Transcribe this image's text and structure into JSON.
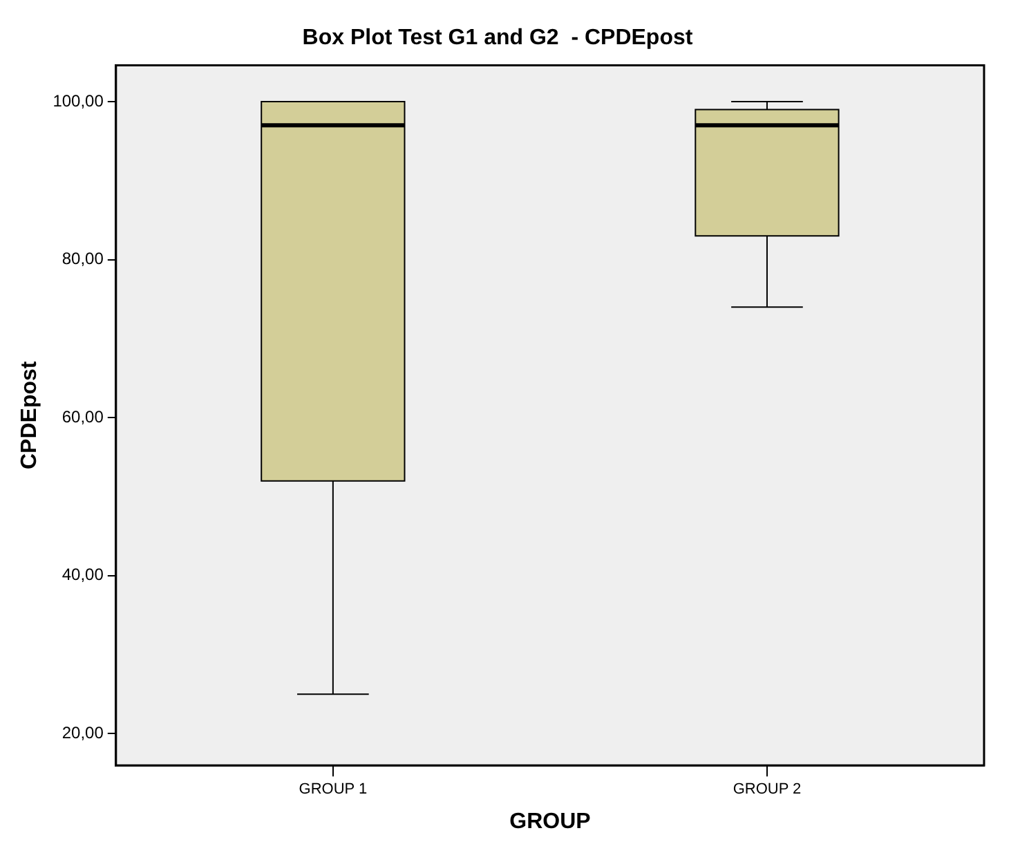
{
  "chart_data": {
    "type": "box",
    "title": "Box Plot Test G1 and G2  - CPDEpost",
    "xlabel": "GROUP",
    "ylabel": "CPDEpost",
    "categories": [
      "GROUP 1",
      "GROUP 2"
    ],
    "color": "#d3ce98",
    "boxes": [
      {
        "low": 25,
        "q1": 52,
        "median": 97,
        "q3": 100,
        "high": 100
      },
      {
        "low": 74,
        "q1": 83,
        "median": 97,
        "q3": 99,
        "high": 100
      }
    ],
    "ylim": [
      16,
      104.6
    ],
    "yticks": [
      {
        "value": 20,
        "label": "20,00"
      },
      {
        "value": 40,
        "label": "40,00"
      },
      {
        "value": 60,
        "label": "60,00"
      },
      {
        "value": 80,
        "label": "80,00"
      },
      {
        "value": 100,
        "label": "100,00"
      }
    ],
    "grid": false,
    "legend": false
  }
}
